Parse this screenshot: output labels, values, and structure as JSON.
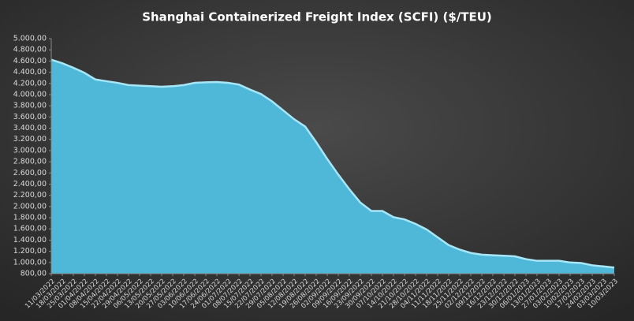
{
  "chart_data": {
    "type": "area",
    "title": "Shanghai  Containerized Freight Index  (SCFI) ($/TEU)",
    "x": [
      "11/03/2022",
      "18/03/2022",
      "25/03/2022",
      "01/04/2022",
      "08/04/2022",
      "15/04/2022",
      "22/04/2022",
      "29/04/2022",
      "06/05/2022",
      "13/05/2022",
      "20/05/2022",
      "27/05/2022",
      "03/06/2022",
      "10/06/2022",
      "17/06/2022",
      "24/06/2022",
      "01/07/2022",
      "08/07/2022",
      "15/07/2022",
      "22/07/2022",
      "29/07/2022",
      "05/08/2022",
      "12/08/2022",
      "19/08/2022",
      "26/08/2022",
      "02/09/2022",
      "09/09/2022",
      "16/09/2022",
      "23/09/2022",
      "30/09/2022",
      "07/10/2022",
      "14/10/2022",
      "21/10/2022",
      "28/10/2022",
      "04/11/2022",
      "11/11/2022",
      "18/11/2022",
      "25/11/2022",
      "02/12/2022",
      "09/12/2022",
      "16/12/2022",
      "23/12/2022",
      "30/12/2022",
      "06/01/2023",
      "13/01/2023",
      "27/01/2023",
      "03/02/2023",
      "10/02/2023",
      "17/02/2023",
      "24/02/2023",
      "03/03/2023",
      "10/03/2023"
    ],
    "values": [
      4624,
      4560,
      4480,
      4390,
      4270,
      4240,
      4210,
      4170,
      4160,
      4150,
      4140,
      4150,
      4170,
      4210,
      4220,
      4225,
      4210,
      4180,
      4090,
      4010,
      3880,
      3720,
      3560,
      3430,
      3150,
      2850,
      2570,
      2310,
      2070,
      1920,
      1920,
      1810,
      1770,
      1690,
      1590,
      1450,
      1310,
      1230,
      1170,
      1140,
      1130,
      1120,
      1110,
      1060,
      1030,
      1030,
      1030,
      1000,
      990,
      950,
      930,
      910
    ],
    "color": "#4fb8d8",
    "line_color": "#a6e6f7",
    "ylim": [
      800,
      5000
    ],
    "yticks": [
      {
        "value": 800,
        "label": "800,00"
      },
      {
        "value": 1000,
        "label": "1.000,00"
      },
      {
        "value": 1200,
        "label": "1.200,00"
      },
      {
        "value": 1400,
        "label": "1.400,00"
      },
      {
        "value": 1600,
        "label": "1.600,00"
      },
      {
        "value": 1800,
        "label": "1.800,00"
      },
      {
        "value": 2000,
        "label": "2.000,00"
      },
      {
        "value": 2200,
        "label": "2.200,00"
      },
      {
        "value": 2400,
        "label": "2.400,00"
      },
      {
        "value": 2600,
        "label": "2.600,00"
      },
      {
        "value": 2800,
        "label": "2.800,00"
      },
      {
        "value": 3000,
        "label": "3.000,00"
      },
      {
        "value": 3200,
        "label": "3.200,00"
      },
      {
        "value": 3400,
        "label": "3.400,00"
      },
      {
        "value": 3600,
        "label": "3.600,00"
      },
      {
        "value": 3800,
        "label": "3.800,00"
      },
      {
        "value": 4000,
        "label": "4.000,00"
      },
      {
        "value": 4200,
        "label": "4.200,00"
      },
      {
        "value": 4400,
        "label": "4.400,00"
      },
      {
        "value": 4600,
        "label": "4.600,00"
      },
      {
        "value": 4800,
        "label": "4.800,00"
      },
      {
        "value": 5000,
        "label": "5.000,00"
      }
    ],
    "grid": false
  }
}
